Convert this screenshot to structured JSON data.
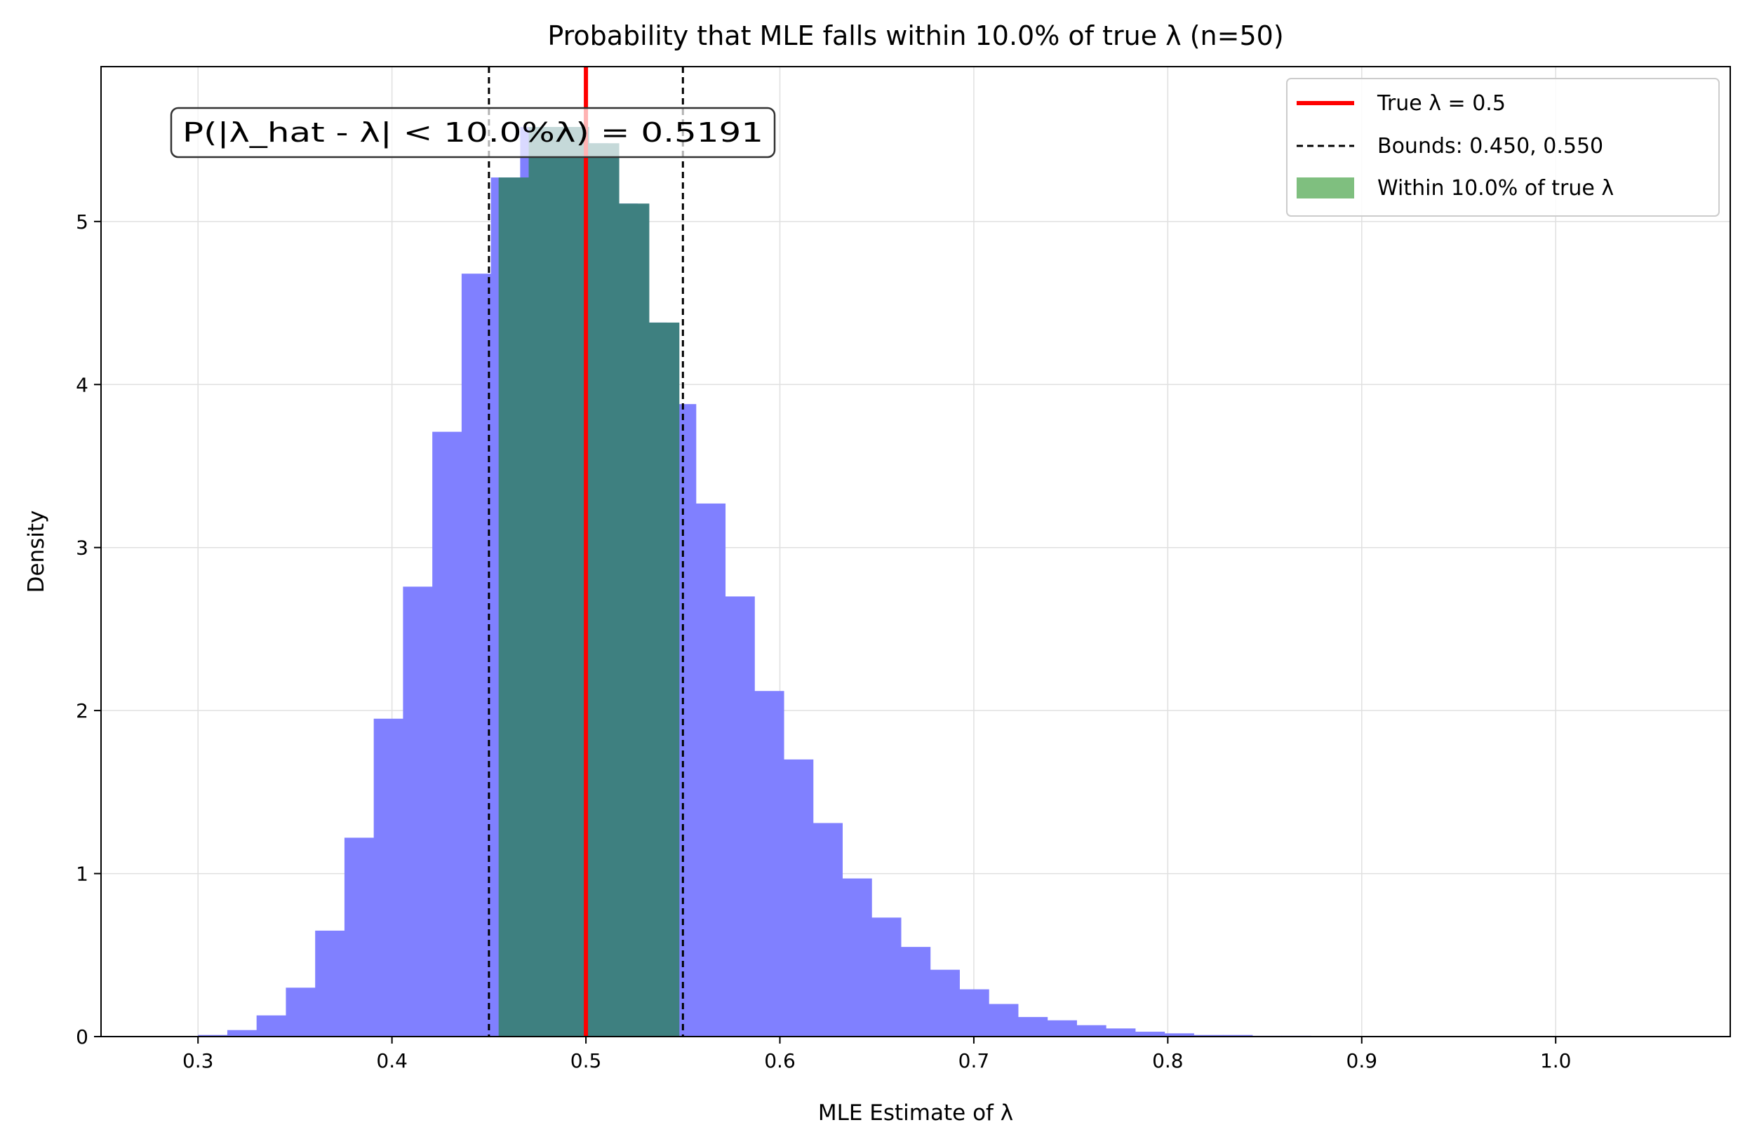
{
  "chart_data": {
    "type": "bar",
    "title": "Probability that MLE falls within 10.0% of true λ (n=50)",
    "xlabel": "MLE Estimate of λ",
    "ylabel": "Density",
    "xlim": [
      0.25,
      1.09
    ],
    "ylim": [
      0,
      5.95
    ],
    "xticks": [
      0.3,
      0.4,
      0.5,
      0.6,
      0.7,
      0.8,
      0.9,
      1.0
    ],
    "xtick_labels": [
      "0.3",
      "0.4",
      "0.5",
      "0.6",
      "0.7",
      "0.8",
      "0.9",
      "1.0"
    ],
    "yticks": [
      0,
      1,
      2,
      3,
      4,
      5
    ],
    "ytick_labels": [
      "0",
      "1",
      "2",
      "3",
      "4",
      "5"
    ],
    "grid": true,
    "legend_position": "top-right",
    "histogram": {
      "bin_start": 0.3,
      "bin_width": 0.0151,
      "color": "#8080ff",
      "values": [
        0.01,
        0.04,
        0.13,
        0.3,
        0.65,
        1.22,
        1.95,
        2.76,
        3.71,
        4.68,
        5.27,
        5.58,
        5.58,
        5.48,
        5.11,
        4.38,
        3.88,
        3.27,
        2.7,
        2.12,
        1.7,
        1.31,
        0.97,
        0.73,
        0.55,
        0.41,
        0.29,
        0.2,
        0.12,
        0.1,
        0.07,
        0.05,
        0.03,
        0.02,
        0.01,
        0.01,
        0.005,
        0.005
      ]
    },
    "within_region": {
      "bin_start": 0.455,
      "bin_width": 0.0155,
      "color": "#3e8080",
      "values": [
        5.27,
        5.58,
        5.58,
        5.48,
        5.11,
        4.38
      ],
      "legend_color": "#7fbf7f"
    },
    "true_lambda": 0.5,
    "true_color": "#ff0000",
    "bounds": [
      0.45,
      0.55
    ],
    "annotation": "P(|λ_hat - λ| < 10.0%λ) = 0.5191",
    "legend": [
      {
        "label": "True λ = 0.5",
        "kind": "solid-line",
        "color": "#ff0000"
      },
      {
        "label": "Bounds: 0.450, 0.550",
        "kind": "dashed-line",
        "color": "#000000"
      },
      {
        "label": "Within 10.0% of true λ",
        "kind": "patch",
        "color": "#7fbf7f"
      }
    ]
  }
}
